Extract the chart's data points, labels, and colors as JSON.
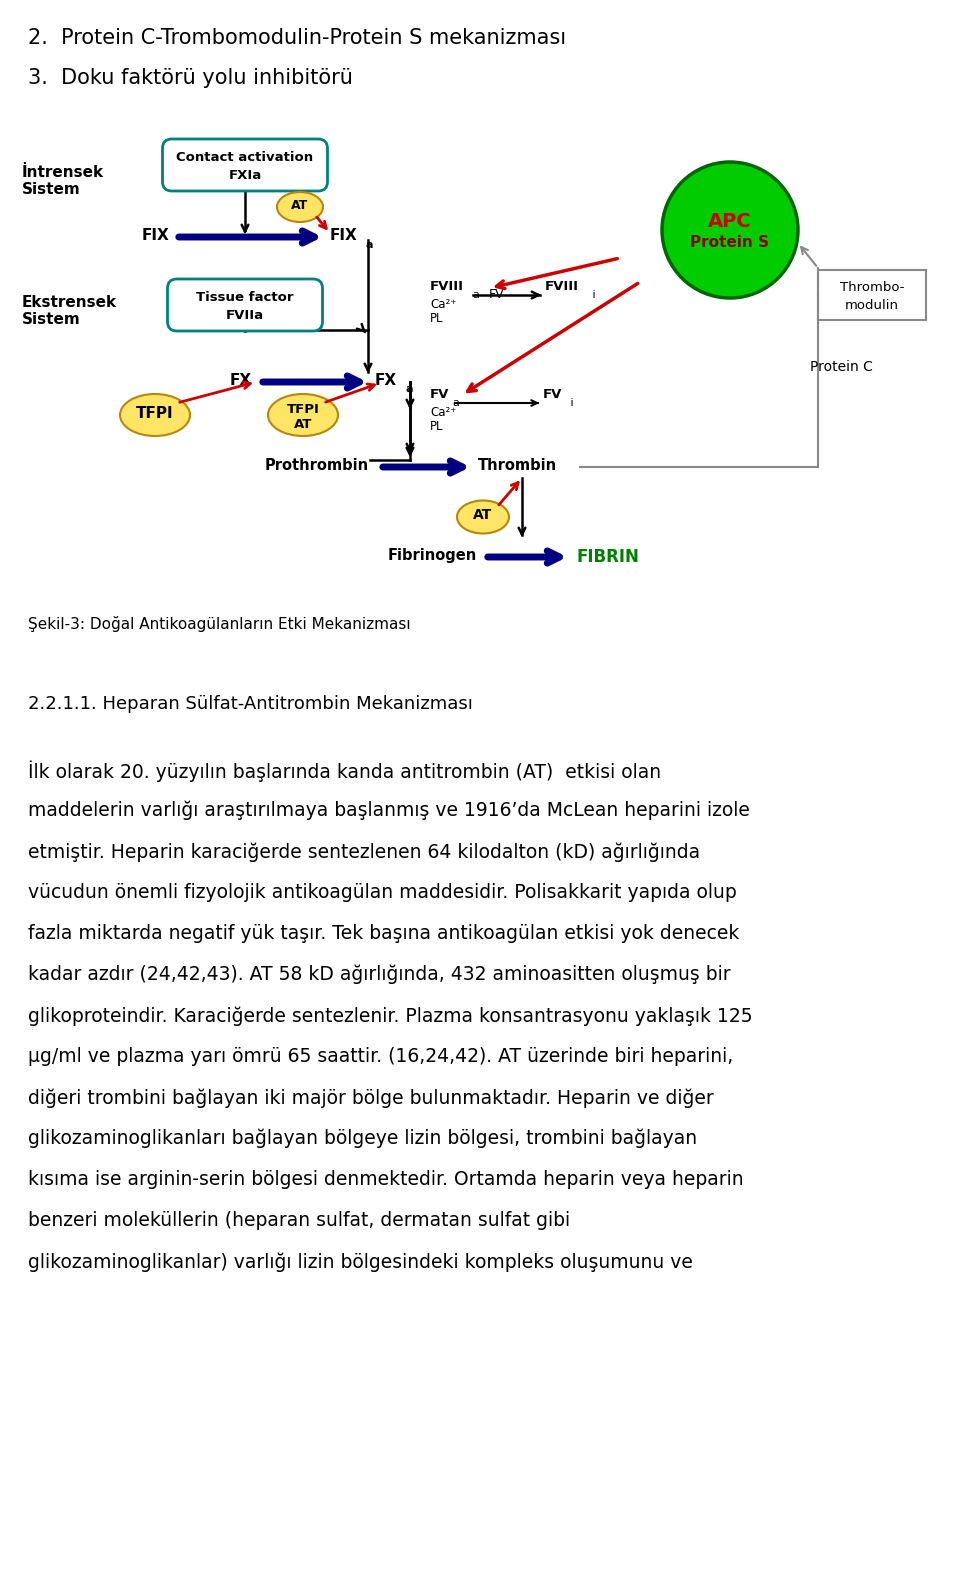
{
  "title1": "2.  Protein C-Trombomodulin-Protein S mekanizması",
  "title2": "3.  Doku faktörü yolu inhibitörü",
  "caption": "Şekil-3: Doğal Antikoagülanların Etki Mekanizması",
  "section_title": "2.2.1.1. Heparan Sülfat-Antitrombin Mekanizması",
  "body_text": [
    "İlk olarak 20. yüzyılın başlarında kanda antitrombin (AT)  etkisi olan",
    "maddelerin varlığı araştırılmaya başlanmış ve 1916’da McLean heparini izole",
    "etmiştir. Heparin karaciğerde sentezlenen 64 kilodalton (kD) ağırlığında",
    "vücudun önemli fizyolojik antikoagülan maddesidir. Polisakkarit yapıda olup",
    "fazla miktarda negatif yük taşır. Tek başına antikoagülan etkisi yok denecek",
    "kadar azdır (24,42,43). AT 58 kD ağırlığında, 432 aminoasitten oluşmuş bir",
    "glikoproteindir. Karaciğerde sentezlenir. Plazma konsantrasyonu yaklaşık 125",
    "μg/ml ve plazma yarı ömrü 65 saattir. (16,24,42). AT üzerinde biri heparini,",
    "diğeri trombini bağlayan iki majör bölge bulunmaktadır. Heparin ve diğer",
    "glikozaminoglikanları bağlayan bölgeye lizin bölgesi, trombini bağlayan",
    "kısıma ise arginin-serin bölgesi denmektedir. Ortamda heparin veya heparin",
    "benzeri moleküllerin (heparan sulfat, dermatan sulfat gibi",
    "glikozaminoglikanlar) varlığı lizin bölgesindeki kompleks oluşumunu ve"
  ],
  "bg_color": "#ffffff"
}
